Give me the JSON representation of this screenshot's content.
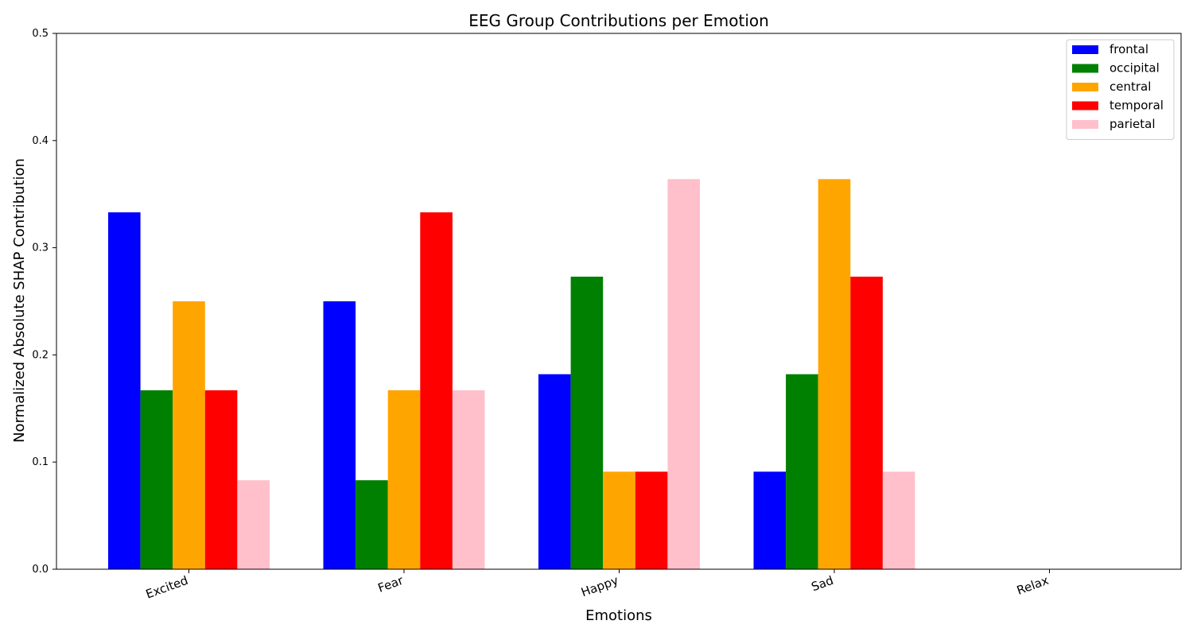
{
  "chart_data": {
    "type": "bar",
    "title": "EEG Group Contributions per Emotion",
    "xlabel": "Emotions",
    "ylabel": "Normalized Absolute SHAP Contribution",
    "ylim": [
      0,
      0.5
    ],
    "yticks": [
      "0.0",
      "0.1",
      "0.2",
      "0.3",
      "0.4",
      "0.5"
    ],
    "categories": [
      "Excited",
      "Fear",
      "Happy",
      "Sad",
      "Relax"
    ],
    "legend_position": "top-right",
    "grid": false,
    "series": [
      {
        "name": "frontal",
        "color": "#0000ff",
        "values": [
          0.333,
          0.25,
          0.182,
          0.091,
          0
        ]
      },
      {
        "name": "occipital",
        "color": "#008000",
        "values": [
          0.167,
          0.083,
          0.273,
          0.182,
          0
        ]
      },
      {
        "name": "central",
        "color": "#ffa500",
        "values": [
          0.25,
          0.167,
          0.091,
          0.364,
          0
        ]
      },
      {
        "name": "temporal",
        "color": "#ff0000",
        "values": [
          0.167,
          0.333,
          0.091,
          0.273,
          0
        ]
      },
      {
        "name": "parietal",
        "color": "#ffc0cb",
        "values": [
          0.083,
          0.167,
          0.364,
          0.091,
          0
        ]
      }
    ]
  }
}
